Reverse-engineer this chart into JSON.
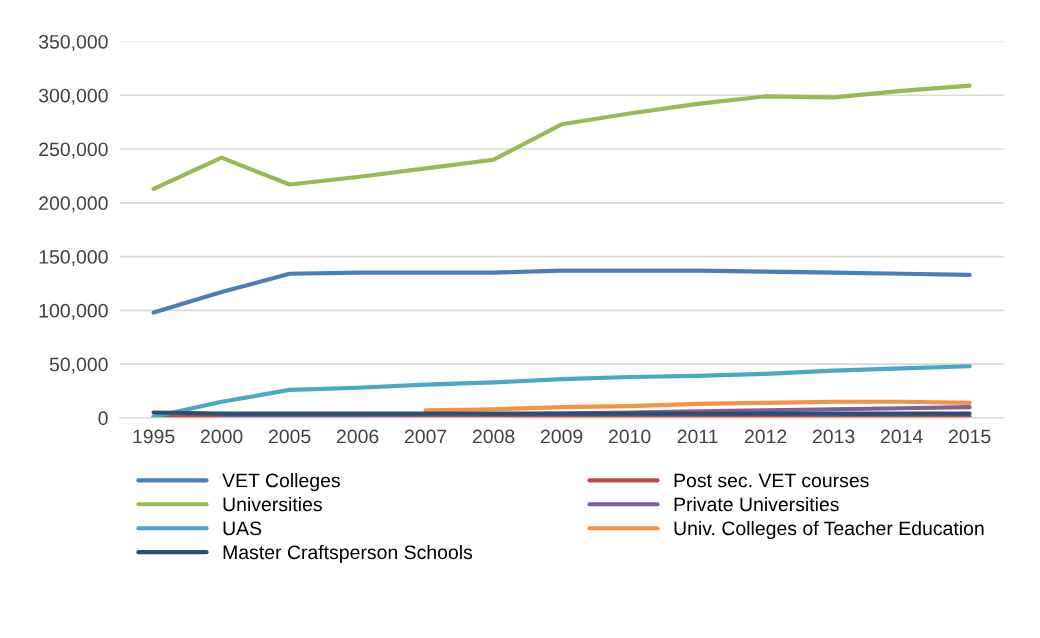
{
  "chart_data": {
    "type": "line",
    "categories": [
      "1995",
      "2000",
      "2005",
      "2006",
      "2007",
      "2008",
      "2009",
      "2010",
      "2011",
      "2012",
      "2013",
      "2014",
      "2015"
    ],
    "series": [
      {
        "name": "VET Colleges",
        "color": "#4a7ebb",
        "values": [
          98000,
          117000,
          134000,
          135000,
          135000,
          135000,
          137000,
          137000,
          137000,
          136000,
          135000,
          134000,
          133000
        ]
      },
      {
        "name": "Post sec. VET courses",
        "color": "#be4b48",
        "values": [
          1000,
          1000,
          1000,
          1000,
          1000,
          1000,
          1000,
          1000,
          1000,
          1000,
          1000,
          1000,
          1000
        ]
      },
      {
        "name": "Universities",
        "color": "#98b954",
        "values": [
          213000,
          242000,
          217000,
          224000,
          232000,
          240000,
          273000,
          283000,
          292000,
          299000,
          298000,
          304000,
          309000
        ]
      },
      {
        "name": "Private Universities",
        "color": "#7d60a0",
        "values": [
          null,
          1000,
          2000,
          2000,
          3000,
          3000,
          4000,
          5000,
          6000,
          7000,
          8000,
          9000,
          10000
        ]
      },
      {
        "name": "UAS",
        "color": "#46aac5",
        "values": [
          1000,
          15000,
          26000,
          28000,
          31000,
          33000,
          36000,
          38000,
          39000,
          41000,
          44000,
          46000,
          48000
        ]
      },
      {
        "name": "Univ. Colleges of Teacher Education",
        "color": "#f69240",
        "values": [
          null,
          null,
          null,
          null,
          7000,
          8000,
          10000,
          11000,
          13000,
          14000,
          15000,
          15000,
          14000
        ]
      },
      {
        "name": "Master Craftsperson Schools",
        "color": "#2c4d75",
        "values": [
          5000,
          4000,
          4000,
          4000,
          4000,
          4000,
          4000,
          4000,
          4000,
          4000,
          4000,
          4000,
          4000
        ]
      }
    ],
    "ylim": [
      0,
      350000
    ],
    "yticks": [
      {
        "value": 0,
        "label": "0"
      },
      {
        "value": 50000,
        "label": "50,000"
      },
      {
        "value": 100000,
        "label": "100,000"
      },
      {
        "value": 150000,
        "label": "150,000"
      },
      {
        "value": 200000,
        "label": "200,000"
      },
      {
        "value": 250000,
        "label": "250,000"
      },
      {
        "value": 300000,
        "label": "300,000"
      },
      {
        "value": 350000,
        "label": "350,000"
      }
    ],
    "grid": "y",
    "legend": "bottom",
    "marker": "none",
    "line_style": "solid"
  }
}
